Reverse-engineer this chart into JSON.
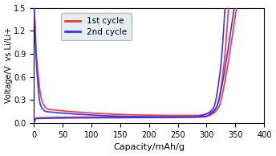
{
  "title": "",
  "xlabel": "Capacity/mAh/g",
  "ylabel": "Voltage/V  vs.Li/Li+",
  "xlim": [
    0,
    400
  ],
  "ylim": [
    0.0,
    1.5
  ],
  "xticks": [
    0,
    50,
    100,
    150,
    200,
    250,
    300,
    350,
    400
  ],
  "yticks": [
    0.0,
    0.3,
    0.6,
    0.9,
    1.2,
    1.5
  ],
  "legend": [
    "1st cycle",
    "2nd cycle"
  ],
  "color_1st": "#ff3333",
  "color_2nd": "#3333ff",
  "linewidth": 1.2,
  "figsize": [
    3.44,
    1.94
  ],
  "dpi": 100,
  "discharge_1st": {
    "x_breakpoints": [
      0,
      1,
      5,
      15,
      25,
      280,
      305,
      318,
      330,
      338
    ],
    "v_breakpoints": [
      1.5,
      1.45,
      0.85,
      0.27,
      0.18,
      0.1,
      0.13,
      0.22,
      0.75,
      1.5
    ]
  },
  "discharge_2nd": {
    "x_breakpoints": [
      0,
      1,
      3,
      12,
      22,
      275,
      300,
      312,
      324,
      332
    ],
    "v_breakpoints": [
      1.5,
      1.48,
      1.0,
      0.23,
      0.15,
      0.08,
      0.12,
      0.2,
      0.7,
      1.5
    ]
  },
  "charge_1st": {
    "x_breakpoints": [
      0,
      5,
      300,
      312,
      322,
      332,
      340,
      347,
      352
    ],
    "v_breakpoints": [
      0.0,
      0.07,
      0.09,
      0.13,
      0.22,
      0.55,
      0.9,
      1.25,
      1.5
    ]
  },
  "charge_2nd": {
    "x_breakpoints": [
      0,
      4,
      295,
      307,
      317,
      327,
      335,
      342,
      348
    ],
    "v_breakpoints": [
      0.0,
      0.06,
      0.08,
      0.12,
      0.2,
      0.5,
      0.85,
      1.2,
      1.5
    ]
  }
}
